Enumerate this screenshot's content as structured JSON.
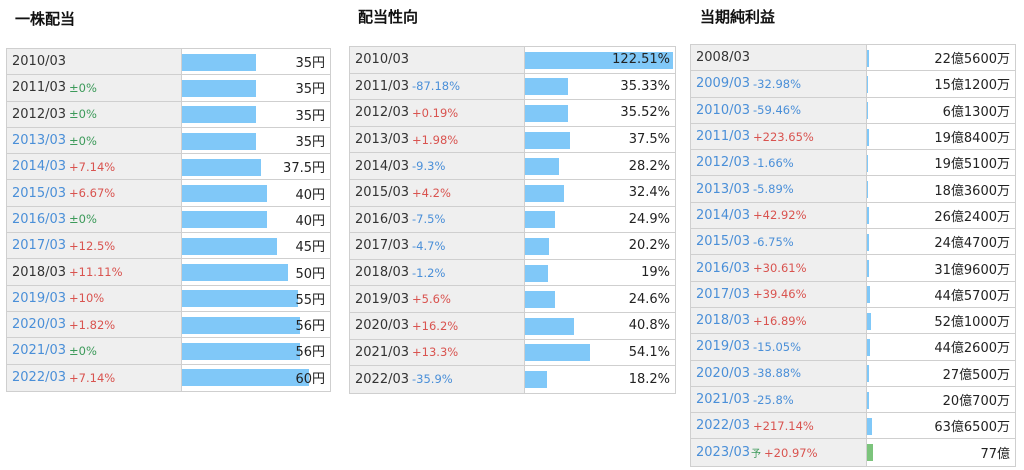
{
  "colors": {
    "bar": "#80c8f8",
    "forecast_bar": "#7cc47c",
    "negative_change": "#4a8fd8",
    "positive_change": "#d9534f",
    "zero_change": "#3c9a5a",
    "label_bg": "#efefef"
  },
  "dividend": {
    "title": "一株配当",
    "rows": [
      {
        "year": "2010/03",
        "change": "",
        "value": "35円",
        "num": 35,
        "link": false
      },
      {
        "year": "2011/03",
        "change": "±0%",
        "value": "35円",
        "num": 35,
        "link": false
      },
      {
        "year": "2012/03",
        "change": "±0%",
        "value": "35円",
        "num": 35,
        "link": false
      },
      {
        "year": "2013/03",
        "change": "±0%",
        "value": "35円",
        "num": 35,
        "link": true
      },
      {
        "year": "2014/03",
        "change": "+7.14%",
        "value": "37.5円",
        "num": 37.5,
        "link": true
      },
      {
        "year": "2015/03",
        "change": "+6.67%",
        "value": "40円",
        "num": 40,
        "link": true
      },
      {
        "year": "2016/03",
        "change": "±0%",
        "value": "40円",
        "num": 40,
        "link": true
      },
      {
        "year": "2017/03",
        "change": "+12.5%",
        "value": "45円",
        "num": 45,
        "link": true
      },
      {
        "year": "2018/03",
        "change": "+11.11%",
        "value": "50円",
        "num": 50,
        "link": false
      },
      {
        "year": "2019/03",
        "change": "+10%",
        "value": "55円",
        "num": 55,
        "link": true
      },
      {
        "year": "2020/03",
        "change": "+1.82%",
        "value": "56円",
        "num": 56,
        "link": true
      },
      {
        "year": "2021/03",
        "change": "±0%",
        "value": "56円",
        "num": 56,
        "link": true
      },
      {
        "year": "2022/03",
        "change": "+7.14%",
        "value": "60円",
        "num": 60,
        "link": true
      }
    ]
  },
  "payout": {
    "title": "配当性向",
    "rows": [
      {
        "year": "2010/03",
        "change": "",
        "value": "122.51%",
        "num": 122.51,
        "link": false
      },
      {
        "year": "2011/03",
        "change": "-87.18%",
        "value": "35.33%",
        "num": 35.33,
        "link": false
      },
      {
        "year": "2012/03",
        "change": "+0.19%",
        "value": "35.52%",
        "num": 35.52,
        "link": false
      },
      {
        "year": "2013/03",
        "change": "+1.98%",
        "value": "37.5%",
        "num": 37.5,
        "link": false
      },
      {
        "year": "2014/03",
        "change": "-9.3%",
        "value": "28.2%",
        "num": 28.2,
        "link": false
      },
      {
        "year": "2015/03",
        "change": "+4.2%",
        "value": "32.4%",
        "num": 32.4,
        "link": false
      },
      {
        "year": "2016/03",
        "change": "-7.5%",
        "value": "24.9%",
        "num": 24.9,
        "link": false
      },
      {
        "year": "2017/03",
        "change": "-4.7%",
        "value": "20.2%",
        "num": 20.2,
        "link": false
      },
      {
        "year": "2018/03",
        "change": "-1.2%",
        "value": "19%",
        "num": 19,
        "link": false
      },
      {
        "year": "2019/03",
        "change": "+5.6%",
        "value": "24.6%",
        "num": 24.6,
        "link": false
      },
      {
        "year": "2020/03",
        "change": "+16.2%",
        "value": "40.8%",
        "num": 40.8,
        "link": false
      },
      {
        "year": "2021/03",
        "change": "+13.3%",
        "value": "54.1%",
        "num": 54.1,
        "link": false
      },
      {
        "year": "2022/03",
        "change": "-35.9%",
        "value": "18.2%",
        "num": 18.2,
        "link": false
      }
    ]
  },
  "net_income": {
    "title": "当期純利益",
    "rows": [
      {
        "year": "2008/03",
        "change": "",
        "value": "22億5600万",
        "num": 22.56,
        "link": false
      },
      {
        "year": "2009/03",
        "change": "-32.98%",
        "value": "15億1200万",
        "num": 15.12,
        "link": true
      },
      {
        "year": "2010/03",
        "change": "-59.46%",
        "value": "6億1300万",
        "num": 6.13,
        "link": true
      },
      {
        "year": "2011/03",
        "change": "+223.65%",
        "value": "19億8400万",
        "num": 19.84,
        "link": true
      },
      {
        "year": "2012/03",
        "change": "-1.66%",
        "value": "19億5100万",
        "num": 19.51,
        "link": true
      },
      {
        "year": "2013/03",
        "change": "-5.89%",
        "value": "18億3600万",
        "num": 18.36,
        "link": true
      },
      {
        "year": "2014/03",
        "change": "+42.92%",
        "value": "26億2400万",
        "num": 26.24,
        "link": true
      },
      {
        "year": "2015/03",
        "change": "-6.75%",
        "value": "24億4700万",
        "num": 24.47,
        "link": true
      },
      {
        "year": "2016/03",
        "change": "+30.61%",
        "value": "31億9600万",
        "num": 31.96,
        "link": true
      },
      {
        "year": "2017/03",
        "change": "+39.46%",
        "value": "44億5700万",
        "num": 44.57,
        "link": true
      },
      {
        "year": "2018/03",
        "change": "+16.89%",
        "value": "52億1000万",
        "num": 52.1,
        "link": true
      },
      {
        "year": "2019/03",
        "change": "-15.05%",
        "value": "44億2600万",
        "num": 44.26,
        "link": true
      },
      {
        "year": "2020/03",
        "change": "-38.88%",
        "value": "27億500万",
        "num": 27.05,
        "link": true
      },
      {
        "year": "2021/03",
        "change": "-25.8%",
        "value": "20億700万",
        "num": 20.07,
        "link": true
      },
      {
        "year": "2022/03",
        "change": "+217.14%",
        "value": "63億6500万",
        "num": 63.65,
        "link": true
      },
      {
        "year": "2023/03",
        "forecast_mark": "予",
        "change": "+20.97%",
        "value": "77億",
        "num": 77,
        "link": true,
        "forecast": true
      }
    ]
  }
}
